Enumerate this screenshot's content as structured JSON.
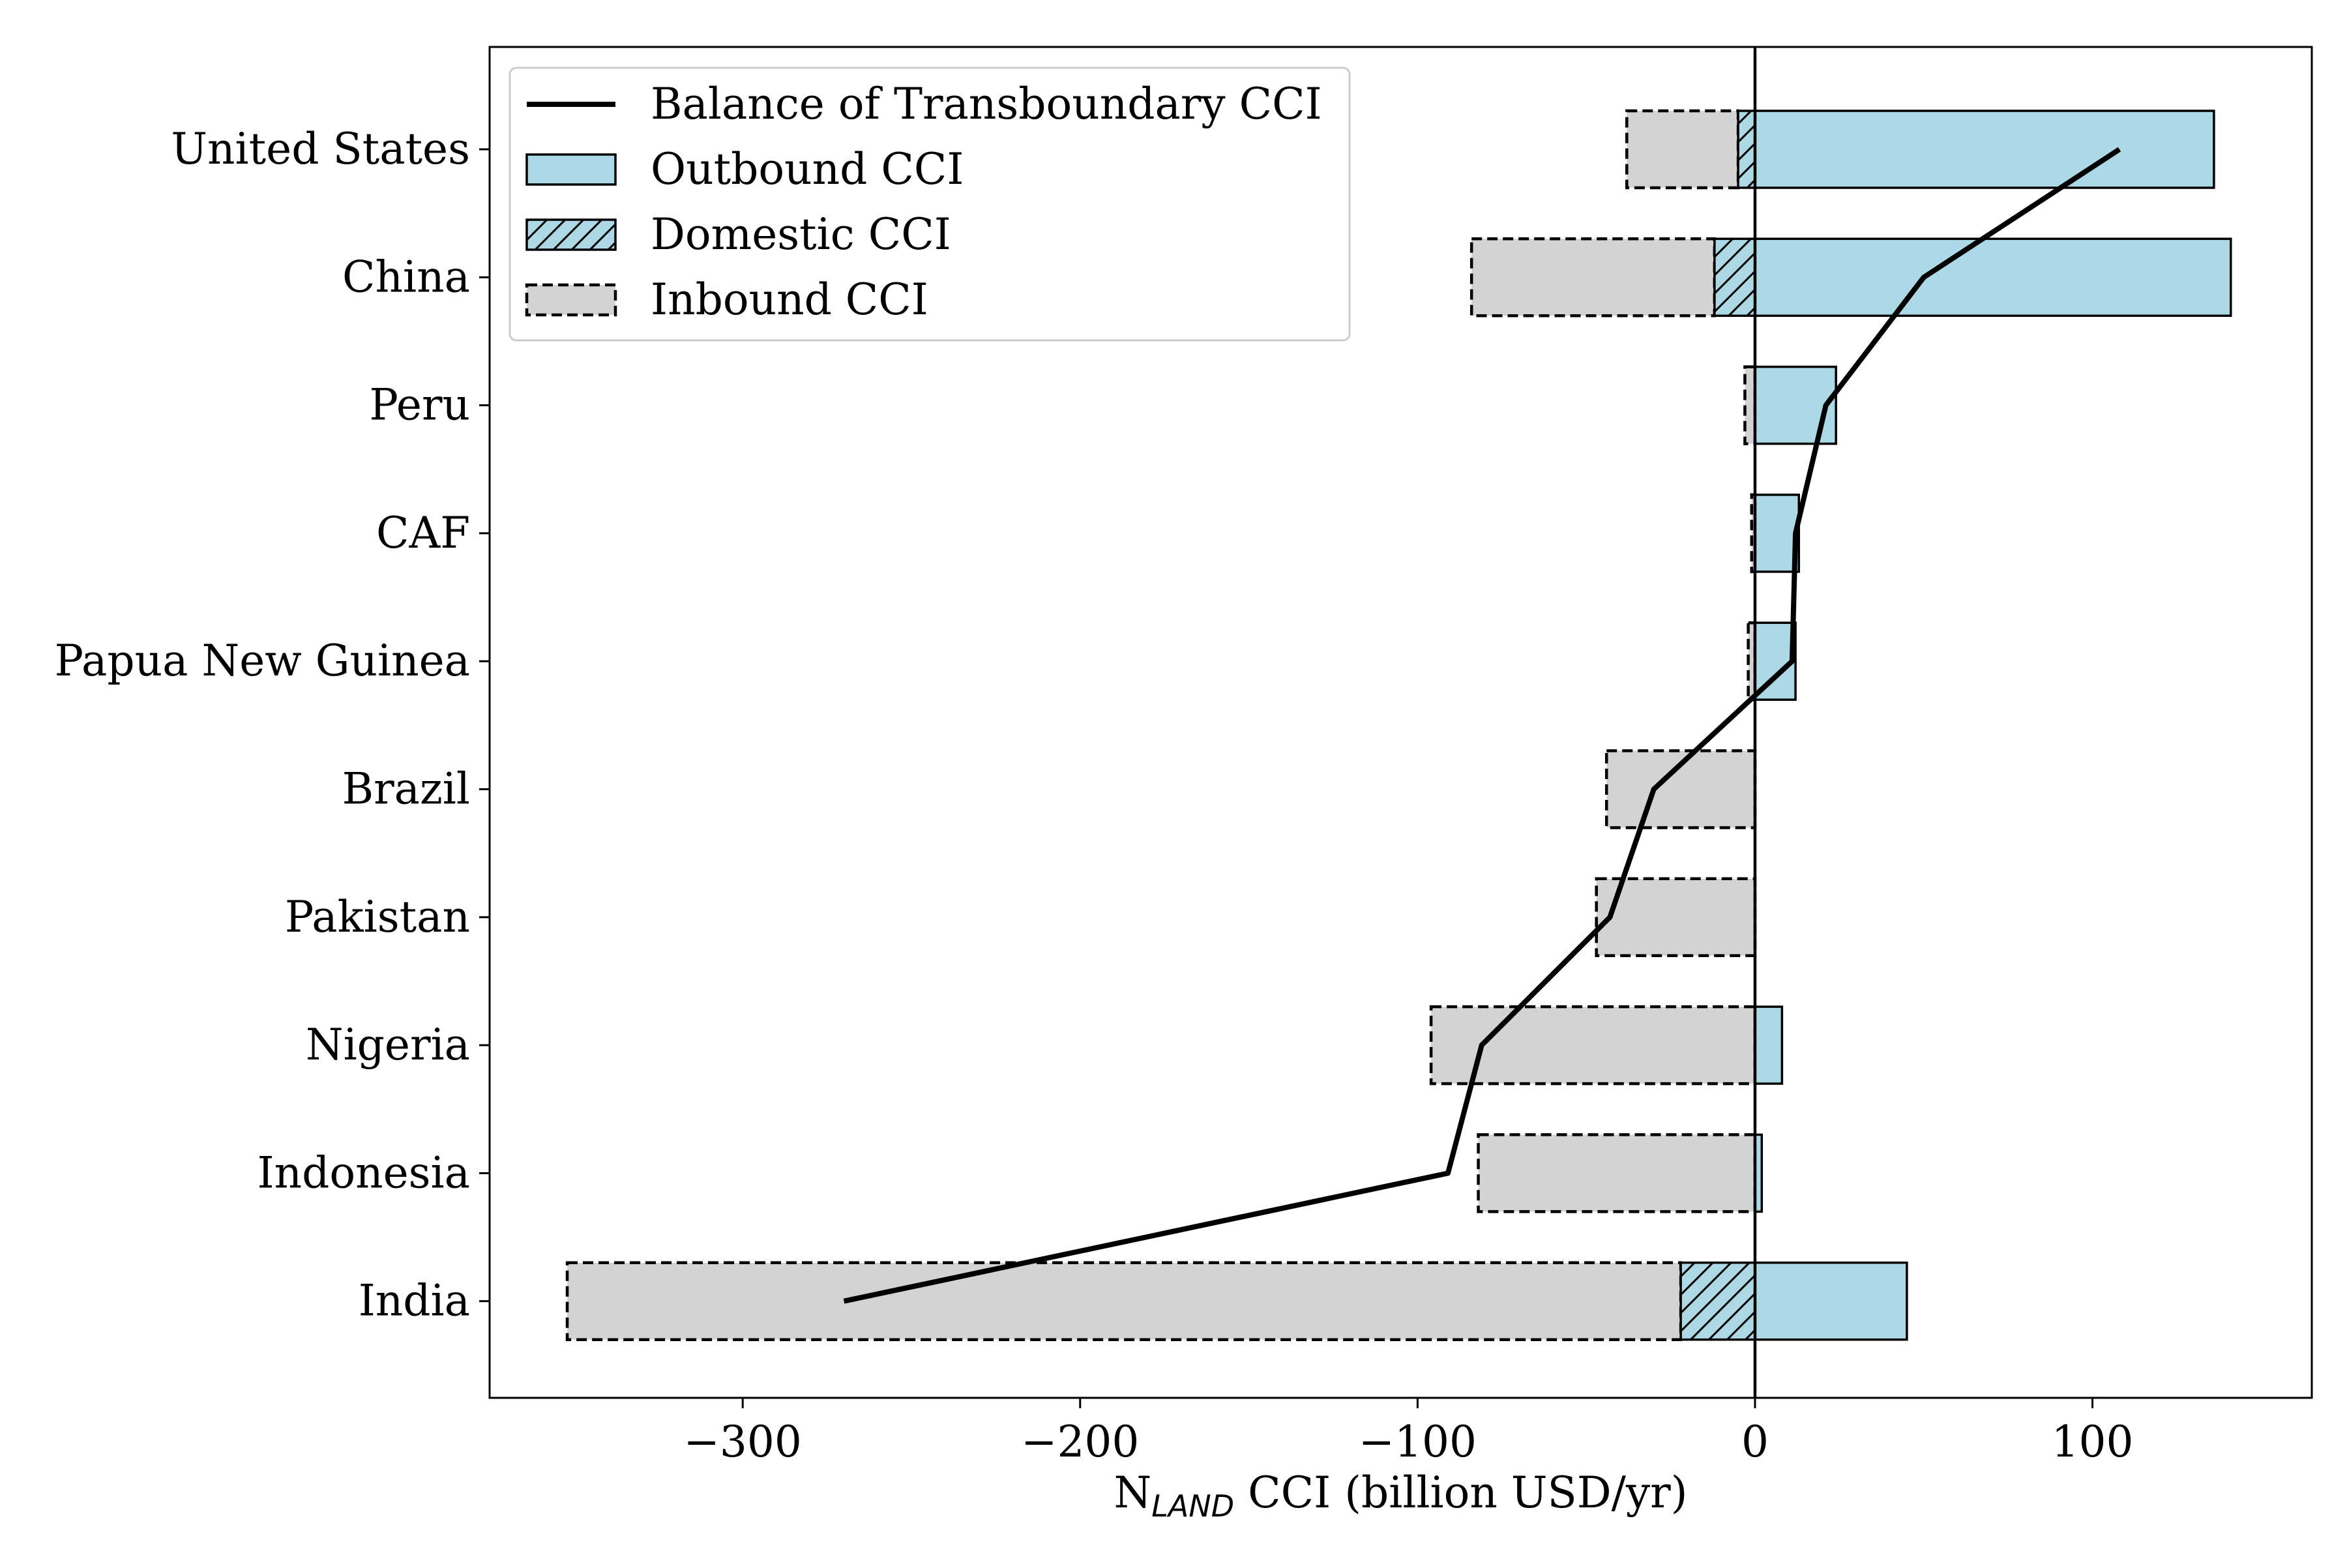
{
  "chart_data": {
    "type": "bar",
    "orientation": "horizontal",
    "categories": [
      "United States",
      "China",
      "Peru",
      "CAF",
      "Papua New Guinea",
      "Brazil",
      "Pakistan",
      "Nigeria",
      "Indonesia",
      "India"
    ],
    "series": [
      {
        "name": "Inbound CCI",
        "values": [
          -38,
          -84,
          -3,
          -1,
          -2,
          -44,
          -47,
          -96,
          -82,
          -352
        ]
      },
      {
        "name": "Domestic CCI",
        "values": [
          -5,
          -12,
          0,
          0,
          0,
          0,
          0,
          0,
          0,
          -22
        ]
      },
      {
        "name": "Outbound CCI",
        "values": [
          136,
          141,
          24,
          13,
          12,
          0,
          0,
          8,
          2,
          45
        ]
      },
      {
        "name": "Balance of Transboundary CCI",
        "values": [
          108,
          50,
          21,
          12,
          11,
          -30,
          -43,
          -81,
          -91,
          -270
        ],
        "type": "line"
      }
    ],
    "xlabel_main": "N",
    "xlabel_sub": "LAND",
    "xlabel_rest": " CCI (billion USD/yr)",
    "xlim": [
      -375,
      165
    ],
    "xticks": [
      -300,
      -200,
      -100,
      0,
      100
    ],
    "xtick_labels": [
      "−300",
      "−200",
      "−100",
      "0",
      "100"
    ],
    "legend": {
      "placement": "upper-left",
      "entries": [
        "Balance of Transboundary CCI",
        "Outbound CCI",
        "Domestic CCI",
        "Inbound CCI"
      ]
    },
    "grid": false,
    "colors": {
      "outbound": "#add8e6",
      "inbound": "#d3d3d3",
      "domestic": "#add8e6",
      "line": "#000000"
    }
  }
}
